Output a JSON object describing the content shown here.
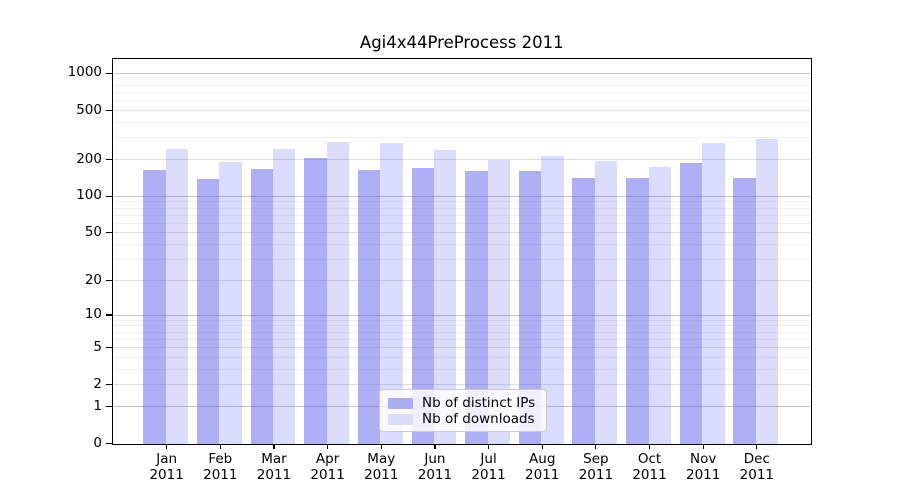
{
  "chart_data": {
    "type": "bar",
    "title": "Agi4x44PreProcess 2011",
    "categories": [
      "Jan",
      "Feb",
      "Mar",
      "Apr",
      "May",
      "Jun",
      "Jul",
      "Aug",
      "Sep",
      "Oct",
      "Nov",
      "Dec"
    ],
    "year": "2011",
    "series": [
      {
        "name": "Nb of distinct IPs",
        "color": "#abadf3",
        "values": [
          165,
          138,
          166,
          206,
          164,
          169,
          160,
          160,
          142,
          140,
          185,
          140
        ]
      },
      {
        "name": "Nb of downloads",
        "color": "#dadcf8",
        "values": [
          242,
          189,
          242,
          274,
          271,
          240,
          196,
          214,
          195,
          174,
          271,
          292
        ]
      }
    ],
    "y_axis": {
      "scale": "log10(1+v)",
      "tick_values": [
        0,
        1,
        2,
        5,
        10,
        20,
        50,
        100,
        200,
        500,
        1000
      ],
      "tick_labels": [
        "0",
        "1",
        "2",
        "5",
        "10",
        "20",
        "50",
        "100",
        "200",
        "500",
        "1000"
      ],
      "range": [
        0,
        1310
      ]
    },
    "x_axis": {
      "tick_labels": [
        "Jan 2011",
        "Feb 2011",
        "Mar 2011",
        "Apr 2011",
        "May 2011",
        "Jun 2011",
        "Jul 2011",
        "Aug 2011",
        "Sep 2011",
        "Oct 2011",
        "Nov 2011",
        "Dec 2011"
      ]
    },
    "legend": {
      "position": "lower center",
      "entries": [
        "Nb of distinct IPs",
        "Nb of downloads"
      ]
    },
    "grid": "on",
    "colors": {
      "bar_dark": "#abadf3",
      "bar_light": "#dadcf8",
      "bar_dark_rgba": "rgba(85,85,235,0.48)",
      "bar_light_rgba": "rgba(85,85,235,0.21)",
      "grid_major": "#c4c4c4",
      "grid_minor": "#efefef",
      "spine": "#000000"
    }
  }
}
